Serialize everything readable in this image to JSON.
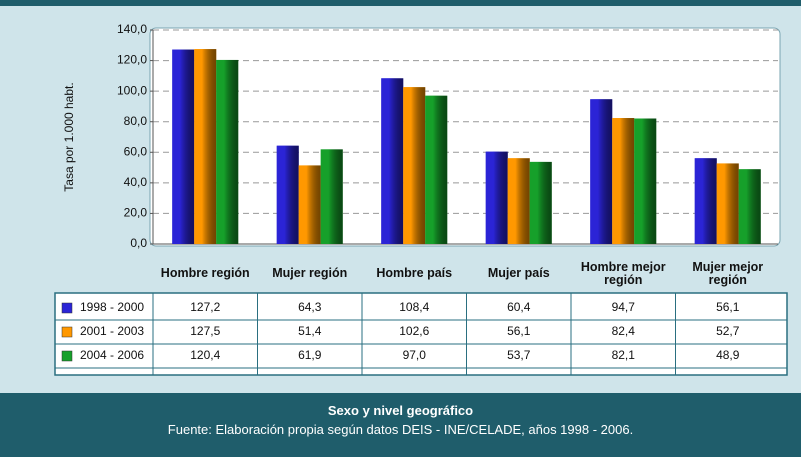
{
  "chart_data": {
    "type": "bar",
    "y_label": "Tasa por 1.000 habt.",
    "x_label": "Sexo y nivel geográfico",
    "source": "Fuente: Elaboración propia según datos DEIS - INE/CELADE, años 1998  - 2006.",
    "categories": [
      "Hombre región",
      "Mujer región",
      "Hombre país",
      "Mujer país",
      "Hombre mejor región",
      "Mujer mejor región"
    ],
    "series": [
      {
        "name": "1998 - 2000",
        "color": "#2b24d6",
        "values": [
          127.2,
          64.3,
          108.4,
          60.4,
          94.7,
          56.1
        ],
        "value_labels": [
          "127,2",
          "64,3",
          "108,4",
          "60,4",
          "94,7",
          "56,1"
        ]
      },
      {
        "name": "2001 - 2003",
        "color": "#ff9800",
        "values": [
          127.5,
          51.4,
          102.6,
          56.1,
          82.4,
          52.7
        ],
        "value_labels": [
          "127,5",
          "51,4",
          "102,6",
          "56,1",
          "82,4",
          "52,7"
        ]
      },
      {
        "name": "2004 - 2006",
        "color": "#16a02a",
        "values": [
          120.4,
          61.9,
          97.0,
          53.7,
          82.1,
          48.9
        ],
        "value_labels": [
          "120,4",
          "61,9",
          "97,0",
          "53,7",
          "82,1",
          "48,9"
        ]
      }
    ],
    "ylim": [
      0,
      140
    ],
    "yticks": [
      {
        "value": 0,
        "label": "0,0"
      },
      {
        "value": 20,
        "label": "20,0"
      },
      {
        "value": 40,
        "label": "40,0"
      },
      {
        "value": 60,
        "label": "60,0"
      },
      {
        "value": 80,
        "label": "80,0"
      },
      {
        "value": 100,
        "label": "100,0"
      },
      {
        "value": 120,
        "label": "120,0"
      },
      {
        "value": 140,
        "label": "140,0"
      }
    ],
    "grid": true
  }
}
